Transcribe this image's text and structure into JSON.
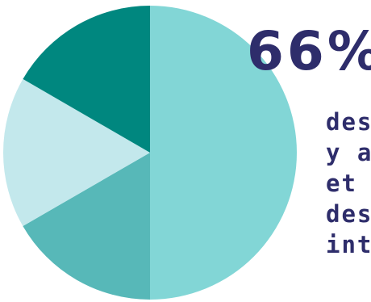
{
  "chart_data": {
    "type": "pie",
    "slices": [
      {
        "value": 50,
        "color": "#82d6d6"
      },
      {
        "value": 16.67,
        "color": "#57b8b8"
      },
      {
        "value": 16.67,
        "color": "#c3e8ec"
      },
      {
        "value": 16.66,
        "color": "#00877f"
      }
    ]
  },
  "stat": {
    "value": "66%"
  },
  "caption": {
    "lines": [
      "des",
      "y a",
      "et d",
      "des",
      "int"
    ]
  },
  "colors": {
    "text": "#2e2d6b",
    "background": "#ffffff"
  }
}
